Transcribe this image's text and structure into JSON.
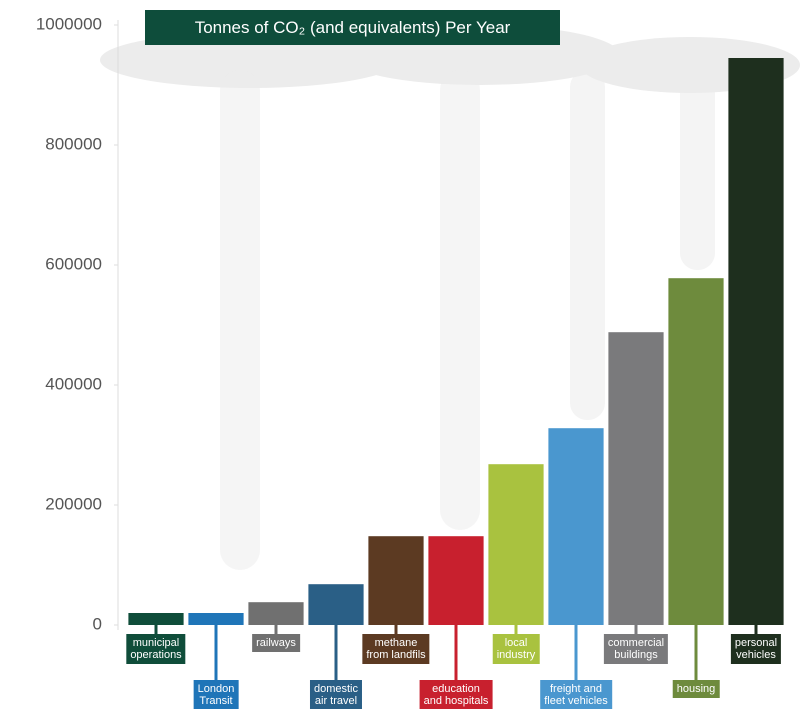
{
  "chart_data": {
    "type": "bar",
    "title": "Tonnes of CO₂ (and equivalents) Per Year",
    "categories": [
      "municipal\noperations",
      "London\nTransit",
      "railways",
      "domestic\nair travel",
      "methane\nfrom landfils",
      "education\nand hospitals",
      "local\nindustry",
      "freight and\nfleet vehicles",
      "commercial\nbuildings",
      "housing",
      "personal\nvehicles"
    ],
    "values": [
      20000,
      20000,
      38000,
      68000,
      148000,
      148000,
      268000,
      328000,
      488000,
      578000,
      945000
    ],
    "colors": [
      "#0f4d3a",
      "#1f75b8",
      "#707070",
      "#2a5f86",
      "#5c3a22",
      "#c8202e",
      "#a9c23f",
      "#4a97cf",
      "#7a7a7c",
      "#6e8b3d",
      "#1e2f1e"
    ],
    "ylim": [
      0,
      1000000
    ],
    "yticks": [
      0,
      200000,
      400000,
      600000,
      800000,
      1000000
    ],
    "grid": false
  }
}
